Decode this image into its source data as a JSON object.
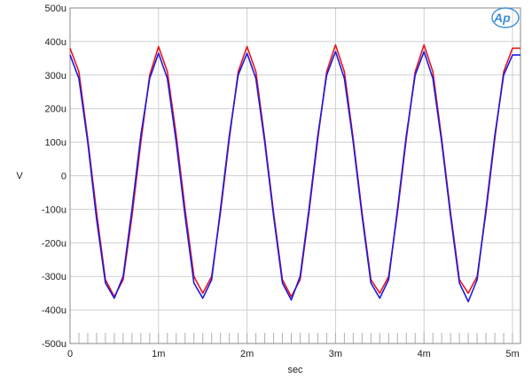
{
  "chart_data": {
    "type": "line",
    "title": "",
    "xlabel": "sec",
    "ylabel": "V",
    "xlim": [
      0,
      0.00509
    ],
    "ylim": [
      -0.0005,
      0.0005
    ],
    "grid": true,
    "x_ticks": [
      0,
      0.001,
      0.002,
      0.003,
      0.004,
      0.005
    ],
    "x_tick_labels": [
      "0",
      "1m",
      "2m",
      "3m",
      "4m",
      "5m"
    ],
    "y_ticks": [
      0.0005,
      0.0004,
      0.0003,
      0.0002,
      0.0001,
      0,
      -0.0001,
      -0.0002,
      -0.0003,
      -0.0004,
      -0.0005
    ],
    "y_tick_labels": [
      "500u",
      "400u",
      "300u",
      "200u",
      "100u",
      "0",
      "-100u",
      "-200u",
      "-300u",
      "-400u",
      "-500u"
    ],
    "series": [
      {
        "color": "#e8141b",
        "x": [
          0,
          0.0001,
          0.0002,
          0.0003,
          0.0004,
          0.0005,
          0.0006,
          0.0007,
          0.0008,
          0.0009,
          0.001,
          0.0011,
          0.0012,
          0.0013,
          0.0014,
          0.0015,
          0.0016,
          0.0017,
          0.0018,
          0.0019,
          0.002,
          0.0021,
          0.0022,
          0.0023,
          0.0024,
          0.0025,
          0.0026,
          0.0027,
          0.0028,
          0.0029,
          0.003,
          0.0031,
          0.0032,
          0.0033,
          0.0034,
          0.0035,
          0.0036,
          0.0037,
          0.0038,
          0.0039,
          0.004,
          0.0041,
          0.0042,
          0.0043,
          0.0044,
          0.0045,
          0.0046,
          0.0047,
          0.0048,
          0.0049,
          0.005,
          0.00509
        ],
        "values": [
          0.00038,
          0.00031,
          0.00011,
          -0.00011,
          -0.00031,
          -0.00036,
          -0.00031,
          -0.00012,
          0.0001,
          0.0003,
          0.000385,
          0.00031,
          0.00012,
          -0.0001,
          -0.0003,
          -0.00035,
          -0.0003,
          -0.00011,
          0.00011,
          0.00031,
          0.000385,
          0.00031,
          0.00011,
          -0.00011,
          -0.00031,
          -0.00036,
          -0.00031,
          -0.00011,
          0.00011,
          0.00031,
          0.00039,
          0.00031,
          0.00011,
          -0.00011,
          -0.00031,
          -0.00035,
          -0.0003,
          -0.00011,
          0.00011,
          0.00031,
          0.00039,
          0.00031,
          0.00011,
          -0.00011,
          -0.00031,
          -0.00035,
          -0.0003,
          -0.00011,
          0.00011,
          0.00031,
          0.00038,
          0.00038
        ]
      },
      {
        "color": "#1a1ae6",
        "x": [
          0,
          0.0001,
          0.0002,
          0.0003,
          0.0004,
          0.0005,
          0.0006,
          0.0007,
          0.0008,
          0.0009,
          0.001,
          0.0011,
          0.0012,
          0.0013,
          0.0014,
          0.0015,
          0.0016,
          0.0017,
          0.0018,
          0.0019,
          0.002,
          0.0021,
          0.0022,
          0.0023,
          0.0024,
          0.0025,
          0.0026,
          0.0027,
          0.0028,
          0.0029,
          0.003,
          0.0031,
          0.0032,
          0.0033,
          0.0034,
          0.0035,
          0.0036,
          0.0037,
          0.0038,
          0.0039,
          0.004,
          0.0041,
          0.0042,
          0.0043,
          0.0044,
          0.0045,
          0.0046,
          0.0047,
          0.0048,
          0.0049,
          0.005,
          0.00509
        ],
        "values": [
          0.00036,
          0.00029,
          0.0001,
          -0.00013,
          -0.00032,
          -0.000365,
          -0.0003,
          -0.0001,
          0.00012,
          0.00029,
          0.000365,
          0.00029,
          0.0001,
          -0.00012,
          -0.00032,
          -0.000365,
          -0.00031,
          -0.0001,
          0.00012,
          0.0003,
          0.000365,
          0.00029,
          0.0001,
          -0.00012,
          -0.00032,
          -0.00037,
          -0.0003,
          -0.0001,
          0.00012,
          0.0003,
          0.00037,
          0.00029,
          0.0001,
          -0.00012,
          -0.00032,
          -0.000365,
          -0.00031,
          -0.0001,
          0.00012,
          0.0003,
          0.00037,
          0.00029,
          0.0001,
          -0.00012,
          -0.00032,
          -0.000375,
          -0.00031,
          -0.0001,
          0.00012,
          0.0003,
          0.00036,
          0.00036
        ]
      }
    ]
  },
  "logo": {
    "text": "Ap",
    "color": "#3d8fd6"
  }
}
